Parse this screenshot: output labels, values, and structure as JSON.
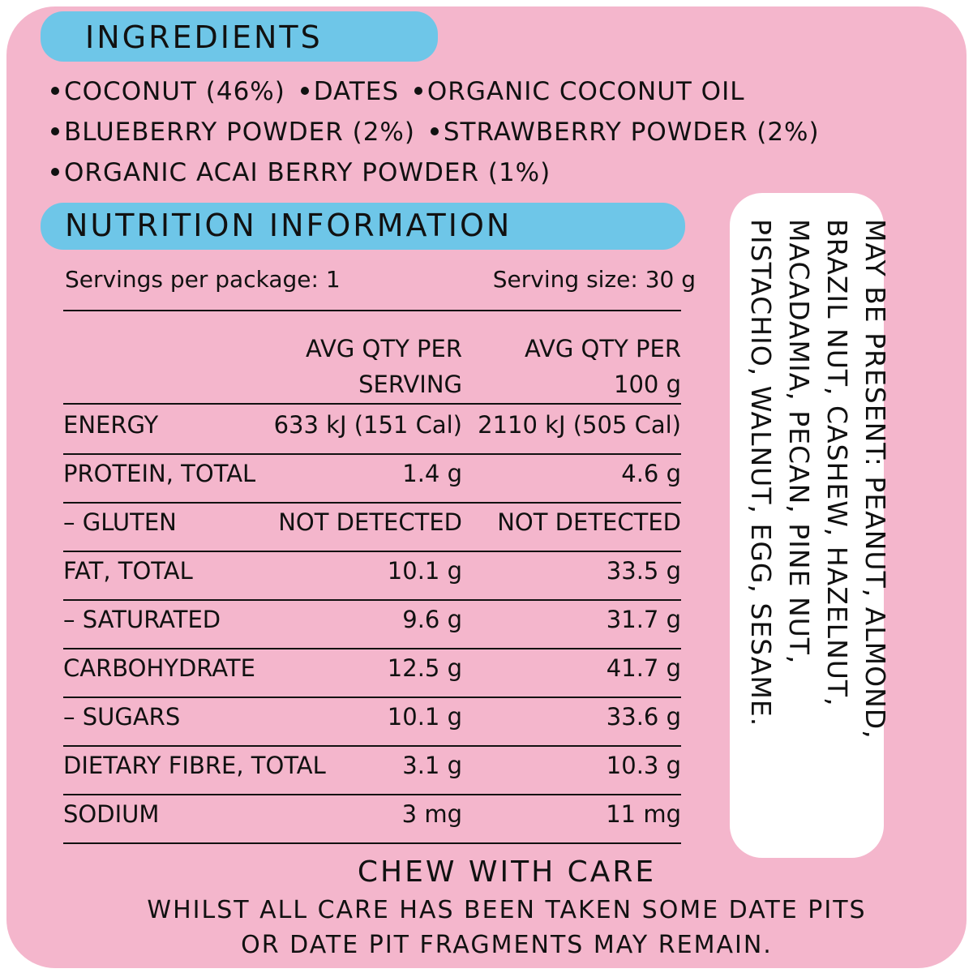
{
  "ingredients": {
    "title": "INGREDIENTS",
    "items": [
      "COCONUT (46%)",
      "DATES",
      "ORGANIC COCONUT OIL",
      "BLUEBERRY POWDER (2%)",
      "STRAWBERRY POWDER (2%)",
      "ORGANIC ACAI BERRY POWDER (1%)"
    ]
  },
  "nutrition": {
    "title": "NUTRITION INFORMATION",
    "servings_per_package": "Servings per package: 1",
    "serving_size": "Serving size: 30 g",
    "headers": [
      "AVG QTY PER SERVING",
      "AVG QTY PER 100 g"
    ],
    "rows": [
      [
        "ENERGY",
        "633 kJ (151 Cal)",
        "2110 kJ (505 Cal)"
      ],
      [
        "PROTEIN, TOTAL",
        "1.4 g",
        "4.6 g"
      ],
      [
        "– GLUTEN",
        "NOT DETECTED",
        "NOT DETECTED"
      ],
      [
        "FAT, TOTAL",
        "10.1 g",
        "33.5 g"
      ],
      [
        "– SATURATED",
        "9.6 g",
        "31.7 g"
      ],
      [
        "CARBOHYDRATE",
        "12.5 g",
        "41.7 g"
      ],
      [
        "– SUGARS",
        "10.1 g",
        "33.6 g"
      ],
      [
        "DIETARY FIBRE, TOTAL",
        "3.1 g",
        "10.3 g"
      ],
      [
        "SODIUM",
        "3 mg",
        "11 mg"
      ]
    ]
  },
  "allergens": {
    "lines": [
      "MAY BE PRESENT: PEANUT, ALMOND,",
      "BRAZIL NUT, CASHEW, HAZELNUT,",
      "MACADAMIA, PECAN, PINE NUT,",
      "PISTACHIO, WALNUT, EGG, SESAME."
    ]
  },
  "footer": {
    "title": "CHEW WITH CARE",
    "lines": [
      "WHILST ALL CARE HAS BEEN TAKEN SOME DATE PITS",
      "OR DATE PIT FRAGMENTS MAY REMAIN."
    ]
  }
}
